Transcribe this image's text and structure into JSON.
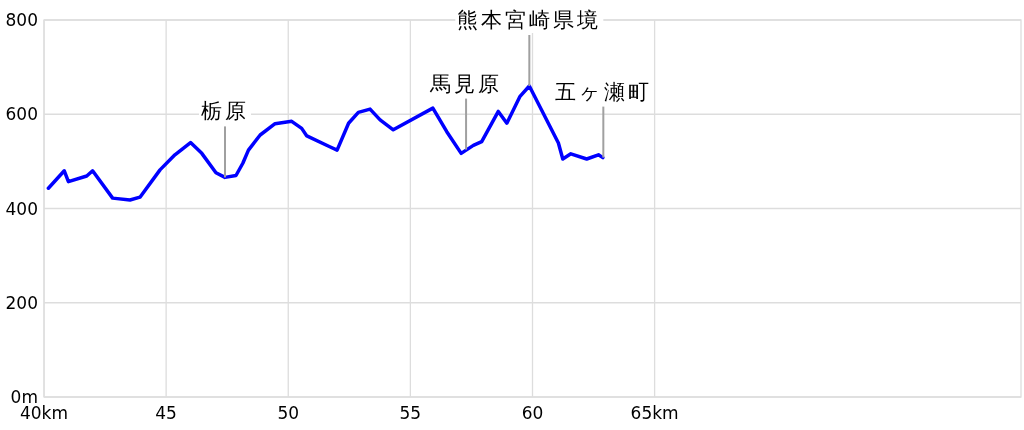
{
  "chart_data": {
    "type": "line",
    "x": [
      40.18,
      40.83,
      41.0,
      41.75,
      41.99,
      42.81,
      43.52,
      43.93,
      44.75,
      45.36,
      46.0,
      46.46,
      47.04,
      47.41,
      47.86,
      48.14,
      48.37,
      48.85,
      49.46,
      50.14,
      50.55,
      50.76,
      51.7,
      52.0,
      52.47,
      52.87,
      53.35,
      53.76,
      54.3,
      55.92,
      56.49,
      57.08,
      57.58,
      57.92,
      58.6,
      58.95,
      59.49,
      59.87,
      61.06,
      61.24,
      61.57,
      62.22,
      62.7,
      62.88
    ],
    "series": [
      {
        "color": "#0000ff",
        "values": [
          443,
          480,
          457,
          469,
          480,
          422,
          418,
          424,
          482,
          514,
          540,
          517,
          476,
          466,
          470,
          496,
          524,
          556,
          580,
          585,
          570,
          554,
          531,
          524,
          581,
          604,
          611,
          588,
          567,
          613,
          563,
          517,
          534,
          542,
          606,
          581,
          638,
          660,
          539,
          505,
          516,
          505,
          514,
          508
        ]
      }
    ],
    "xlim": [
      40,
      80
    ],
    "xticks": [
      {
        "value": 40,
        "label": "40km"
      },
      45,
      50,
      55,
      60,
      {
        "value": 65,
        "label": "65km"
      }
    ],
    "ylim": [
      0,
      800
    ],
    "yticks": [
      {
        "value": 0,
        "label": "0m"
      },
      200,
      400,
      600,
      800
    ],
    "grid": true,
    "marker": "none",
    "line_style": "solid",
    "annotations": [
      {
        "text": "栃原",
        "x": 47.41,
        "y": 466
      },
      {
        "text": "馬見原",
        "x": 57.28,
        "y": 525
      },
      {
        "text": "熊本宮崎県境",
        "x": 59.87,
        "y": 660
      },
      {
        "text": "五ヶ瀬町",
        "x": 62.9,
        "y": 508
      }
    ]
  }
}
